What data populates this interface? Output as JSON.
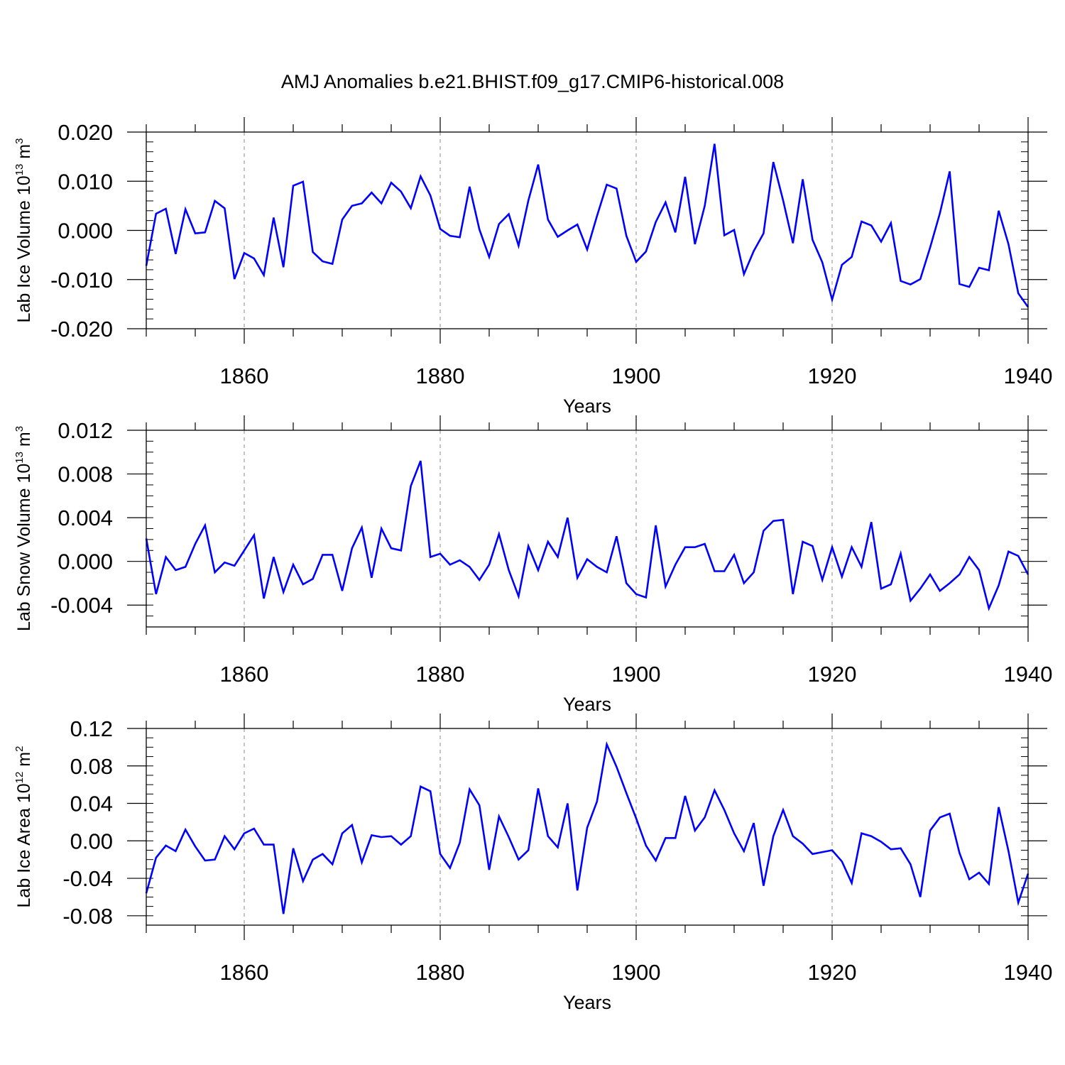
{
  "title": "AMJ Anomalies b.e21.BHIST.f09_g17.CMIP6-historical.008",
  "colors": {
    "line": "#0000ff",
    "axis": "#000000",
    "grid": "#888888"
  },
  "chart_data": [
    {
      "type": "line",
      "ylabel": "Lab Ice Volume 10",
      "ylabel_sup": "13",
      "ylabel_unit": "m",
      "ylabel_unit_sup": "3",
      "xlabel": "Years",
      "xlim": [
        1850,
        1940
      ],
      "ylim": [
        -0.02,
        0.02
      ],
      "yticks": [
        -0.02,
        -0.01,
        0.0,
        0.01,
        0.02
      ],
      "ytick_labels": [
        "-0.020",
        "-0.010",
        "0.000",
        "0.010",
        "0.020"
      ],
      "xticks": [
        1860,
        1880,
        1900,
        1920,
        1940
      ],
      "xtick_labels": [
        "1860",
        "1880",
        "1900",
        "1920",
        "1940"
      ],
      "x_start": 1850,
      "values": [
        -0.0072,
        0.0034,
        0.0044,
        -0.0048,
        0.0043,
        -0.0006,
        -0.0004,
        0.006,
        0.0045,
        -0.0099,
        -0.0046,
        -0.0057,
        -0.0091,
        0.0026,
        -0.0075,
        0.0091,
        0.0099,
        -0.0044,
        -0.0063,
        -0.0068,
        0.0022,
        0.005,
        0.0055,
        0.0077,
        0.0055,
        0.0097,
        0.0079,
        0.0045,
        0.011,
        0.0071,
        0.0003,
        -0.0011,
        -0.0014,
        0.0089,
        0.0002,
        -0.0054,
        0.0013,
        0.0033,
        -0.0031,
        0.0061,
        0.0134,
        0.0022,
        -0.0013,
        0.0,
        0.0012,
        -0.0039,
        0.0029,
        0.0093,
        0.0085,
        -0.0011,
        -0.0064,
        -0.0043,
        0.0017,
        0.0057,
        -0.0004,
        0.0109,
        -0.0028,
        0.005,
        0.0176,
        -0.001,
        0.0001,
        -0.0089,
        -0.0042,
        -0.0006,
        0.0139,
        0.0061,
        -0.0026,
        0.0104,
        -0.0019,
        -0.0065,
        -0.0141,
        -0.007,
        -0.0054,
        0.0018,
        0.001,
        -0.0023,
        0.0015,
        -0.0103,
        -0.011,
        -0.0099,
        -0.0035,
        0.0035,
        0.012,
        -0.0109,
        -0.0115,
        -0.0076,
        -0.0081,
        0.004,
        -0.0028,
        -0.0128,
        -0.0156
      ]
    },
    {
      "type": "line",
      "ylabel": "Lab Snow Volume 10",
      "ylabel_sup": "13",
      "ylabel_unit": "m",
      "ylabel_unit_sup": "3",
      "xlabel": "Years",
      "xlim": [
        1850,
        1940
      ],
      "ylim": [
        -0.006,
        0.012
      ],
      "yticks": [
        -0.004,
        0.0,
        0.004,
        0.008,
        0.012
      ],
      "ytick_labels": [
        "-0.004",
        "0.000",
        "0.004",
        "0.008",
        "0.012"
      ],
      "xticks": [
        1860,
        1880,
        1900,
        1920,
        1940
      ],
      "xtick_labels": [
        "1860",
        "1880",
        "1900",
        "1920",
        "1940"
      ],
      "x_start": 1850,
      "values": [
        0.0021,
        -0.003,
        0.0004,
        -0.0008,
        -0.0005,
        0.0016,
        0.0033,
        -0.001,
        -0.0001,
        -0.0004,
        0.001,
        0.0024,
        -0.0034,
        0.0004,
        -0.0028,
        -0.0003,
        -0.0021,
        -0.0016,
        0.0006,
        0.0006,
        -0.0027,
        0.0012,
        0.0031,
        -0.0015,
        0.003,
        0.0012,
        0.001,
        0.0069,
        0.0092,
        0.0004,
        0.0007,
        -0.0003,
        0.0001,
        -0.0005,
        -0.0017,
        -0.0003,
        0.0025,
        -0.0008,
        -0.0032,
        0.0014,
        -0.0008,
        0.0018,
        0.0004,
        0.004,
        -0.0015,
        0.0002,
        -0.0005,
        -0.001,
        0.0023,
        -0.002,
        -0.003,
        -0.0033,
        0.0033,
        -0.0023,
        -0.0003,
        0.0013,
        0.0013,
        0.0016,
        -0.0009,
        -0.0009,
        0.0006,
        -0.002,
        -0.001,
        0.0028,
        0.0037,
        0.0038,
        -0.003,
        0.0018,
        0.0014,
        -0.0017,
        0.0013,
        -0.0014,
        0.0013,
        -0.0005,
        0.0036,
        -0.0025,
        -0.0021,
        0.0007,
        -0.0036,
        -0.0025,
        -0.0012,
        -0.0027,
        -0.002,
        -0.0012,
        0.0004,
        -0.0008,
        -0.0043,
        -0.0022,
        0.0009,
        0.0005,
        -0.0012
      ]
    },
    {
      "type": "line",
      "ylabel": "Lab Ice Area 10",
      "ylabel_sup": "12",
      "ylabel_unit": "m",
      "ylabel_unit_sup": "2",
      "xlabel": "Years",
      "xlim": [
        1850,
        1940
      ],
      "ylim": [
        -0.09,
        0.12
      ],
      "yticks": [
        -0.08,
        -0.04,
        0.0,
        0.04,
        0.08,
        0.12
      ],
      "ytick_labels": [
        "-0.08",
        "-0.04",
        "0.00",
        "0.04",
        "0.08",
        "0.12"
      ],
      "xticks": [
        1860,
        1880,
        1900,
        1920,
        1940
      ],
      "xtick_labels": [
        "1860",
        "1880",
        "1900",
        "1920",
        "1940"
      ],
      "x_start": 1850,
      "values": [
        -0.056,
        -0.018,
        -0.005,
        -0.011,
        0.012,
        -0.006,
        -0.021,
        -0.02,
        0.005,
        -0.009,
        0.008,
        0.013,
        -0.004,
        -0.004,
        -0.078,
        -0.008,
        -0.043,
        -0.02,
        -0.014,
        -0.025,
        0.008,
        0.017,
        -0.023,
        0.006,
        0.004,
        0.005,
        -0.004,
        0.005,
        0.058,
        0.053,
        -0.014,
        -0.029,
        -0.002,
        0.055,
        0.038,
        -0.031,
        0.026,
        0.004,
        -0.02,
        -0.01,
        0.056,
        0.005,
        -0.007,
        0.04,
        -0.053,
        0.014,
        0.042,
        0.103,
        0.079,
        0.051,
        0.024,
        -0.005,
        -0.021,
        0.003,
        0.003,
        0.048,
        0.011,
        0.025,
        0.054,
        0.033,
        0.008,
        -0.011,
        0.019,
        -0.048,
        0.005,
        0.033,
        0.005,
        -0.003,
        -0.014,
        -0.012,
        -0.01,
        -0.022,
        -0.045,
        0.008,
        0.005,
        -0.001,
        -0.009,
        -0.008,
        -0.025,
        -0.06,
        0.011,
        0.025,
        0.029,
        -0.013,
        -0.041,
        -0.034,
        -0.046,
        0.036,
        -0.011,
        -0.066,
        -0.035
      ]
    }
  ]
}
